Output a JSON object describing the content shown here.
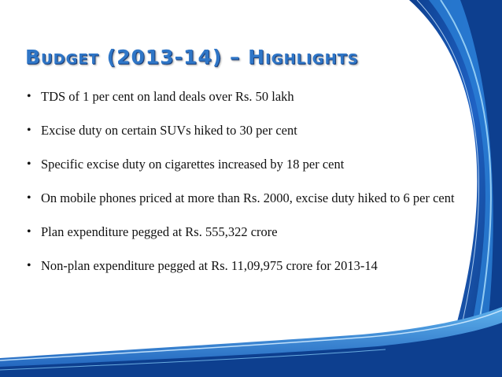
{
  "slide": {
    "title": "Budget (2013-14) – Highlights",
    "bullet_glyph": "•",
    "bullets": [
      "TDS of 1 per cent on land deals over Rs. 50 lakh",
      "Excise duty on certain SUVs hiked to 30 per cent",
      "Specific excise duty on cigarettes increased by 18 per cent",
      "On mobile phones priced at more than Rs. 2000, excise duty hiked to 6 per cent",
      "Plan expenditure pegged at Rs. 555,322 crore",
      "Non-plan expenditure pegged at Rs. 11,09,975 crore for 2013-14"
    ]
  },
  "colors": {
    "title": "#2f76c7",
    "swoosh_dark": "#0d3f8f",
    "swoosh_mid": "#2a7fd6",
    "swoosh_light": "#7fc6f2"
  }
}
